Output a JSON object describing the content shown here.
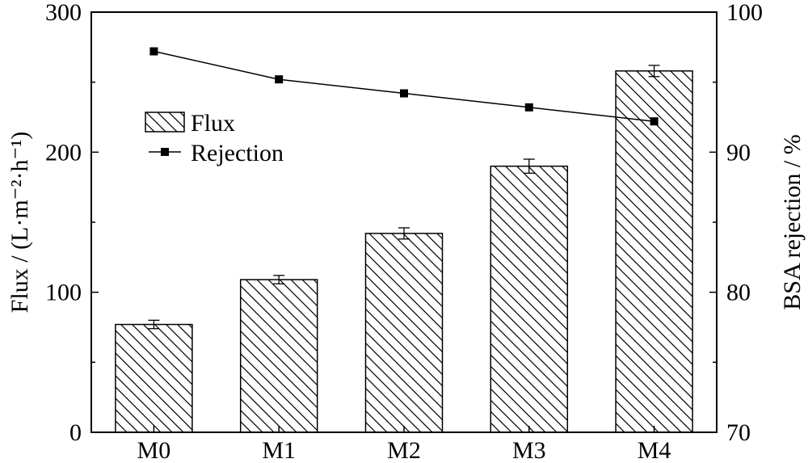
{
  "chart_data": {
    "type": "bar",
    "categories": [
      "M0",
      "M1",
      "M2",
      "M3",
      "M4"
    ],
    "series": [
      {
        "name": "Flux",
        "type": "bar",
        "axis": "left",
        "values": [
          77,
          109,
          142,
          190,
          258
        ],
        "errors": [
          3,
          3,
          4,
          5,
          4
        ],
        "pattern": "diagonal-hatch"
      },
      {
        "name": "Rejection",
        "type": "line",
        "axis": "right",
        "marker": "square",
        "values": [
          97.2,
          95.2,
          94.2,
          93.2,
          92.2
        ]
      }
    ],
    "ylabel": "Flux / (L·m⁻²·h⁻¹)",
    "y2label": "BSA rejection / %",
    "ylim": [
      0,
      300
    ],
    "y2lim": [
      70,
      100
    ],
    "yticks": [
      "0",
      "100",
      "200",
      "300"
    ],
    "y2ticks": [
      "70",
      "80",
      "90",
      "100"
    ],
    "legend": {
      "placement": "upper-left",
      "items": [
        "Flux",
        "Rejection"
      ]
    },
    "grid": false,
    "colors": {
      "line": "#000000",
      "bar_fill": "#ffffff",
      "hatch": "#000000"
    }
  }
}
